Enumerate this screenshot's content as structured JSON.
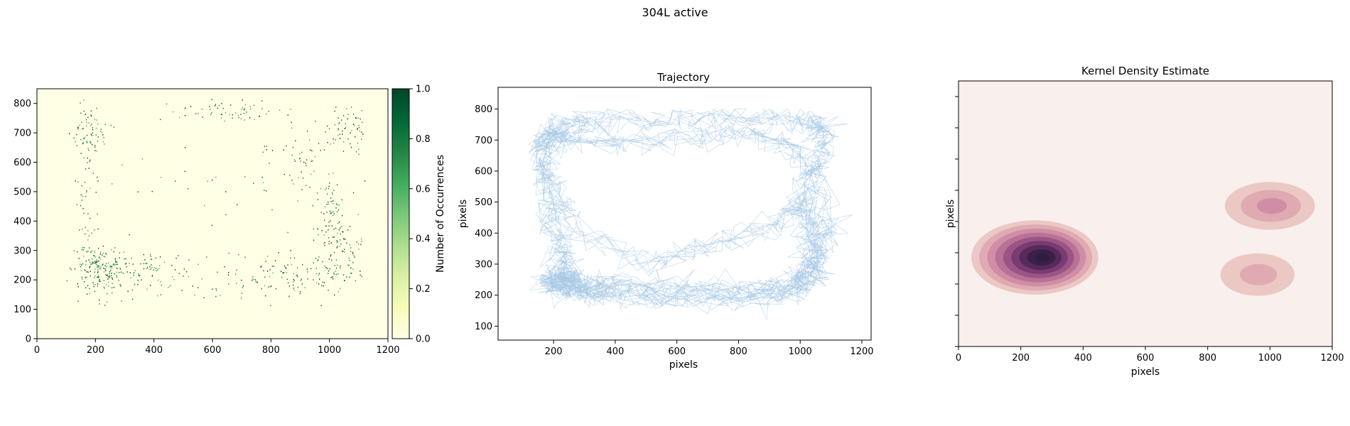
{
  "figure": {
    "suptitle": "304L active",
    "colors": {
      "heat_low": "#ffffe5",
      "heat_high": "#004529",
      "traj": "#a6c8e4",
      "kde_base": "#f9efed",
      "kde_dark": "#2d1e3e"
    }
  },
  "chart_data": [
    {
      "type": "heatmap",
      "title": "",
      "xlabel": "",
      "ylabel": "",
      "xlim": [
        0,
        1200
      ],
      "ylim": [
        0,
        850
      ],
      "xticks": [
        0,
        200,
        400,
        600,
        800,
        1000,
        1200
      ],
      "yticks": [
        0,
        100,
        200,
        300,
        400,
        500,
        600,
        700,
        800
      ],
      "colorbar": {
        "label": "Number of Occurrences",
        "ticks": [
          0.0,
          0.2,
          0.4,
          0.6,
          0.8,
          1.0
        ],
        "tick_labels": [
          "0.0",
          "0.2",
          "0.4",
          "0.6",
          "0.8",
          "1.0"
        ],
        "range": [
          0,
          1
        ]
      },
      "hot_regions": [
        {
          "x": 220,
          "y": 240,
          "sx": 45,
          "sy": 45,
          "count": 180
        },
        {
          "x": 180,
          "y": 700,
          "sx": 30,
          "sy": 50,
          "count": 70
        },
        {
          "x": 1060,
          "y": 710,
          "sx": 35,
          "sy": 40,
          "count": 60
        },
        {
          "x": 1030,
          "y": 300,
          "sx": 50,
          "sy": 90,
          "count": 130
        },
        {
          "x": 880,
          "y": 220,
          "sx": 70,
          "sy": 30,
          "count": 70
        },
        {
          "x": 370,
          "y": 230,
          "sx": 60,
          "sy": 30,
          "count": 60
        },
        {
          "x": 650,
          "y": 770,
          "sx": 90,
          "sy": 20,
          "count": 60
        },
        {
          "x": 870,
          "y": 620,
          "sx": 60,
          "sy": 60,
          "count": 50
        },
        {
          "x": 170,
          "y": 420,
          "sx": 25,
          "sy": 120,
          "count": 50
        },
        {
          "x": 1010,
          "y": 460,
          "sx": 25,
          "sy": 50,
          "count": 25
        },
        {
          "x": 600,
          "y": 200,
          "sx": 200,
          "sy": 40,
          "count": 60
        },
        {
          "x": 600,
          "y": 500,
          "sx": 300,
          "sy": 180,
          "count": 60
        }
      ]
    },
    {
      "type": "line",
      "title": "Trajectory",
      "xlabel": "pixels",
      "ylabel": "pixels",
      "xlim": [
        20,
        1230
      ],
      "ylim": [
        55,
        870
      ],
      "xticks": [
        200,
        400,
        600,
        800,
        1000,
        1200
      ],
      "yticks": [
        100,
        200,
        300,
        400,
        500,
        600,
        700,
        800
      ],
      "series": [
        {
          "x": [
            180,
            210,
            240,
            260,
            300,
            380,
            520,
            700,
            900,
            1010,
            1050,
            1040,
            1010,
            1070,
            1080,
            1050,
            900,
            700,
            500,
            300,
            200,
            170,
            190,
            210,
            230,
            250,
            240,
            400,
            650,
            850,
            1000,
            1060,
            1100,
            1040,
            950,
            800,
            600,
            400,
            250,
            200,
            160,
            180,
            260,
            500,
            700,
            900,
            1020,
            1030,
            980,
            700,
            450,
            230
          ],
          "y": [
            250,
            230,
            260,
            240,
            220,
            215,
            205,
            200,
            210,
            230,
            300,
            400,
            520,
            650,
            730,
            760,
            770,
            775,
            765,
            760,
            740,
            650,
            500,
            380,
            300,
            260,
            230,
            240,
            220,
            215,
            250,
            330,
            420,
            600,
            700,
            720,
            700,
            690,
            700,
            720,
            680,
            560,
            420,
            300,
            350,
            420,
            500,
            300,
            200,
            180,
            190,
            210
          ]
        }
      ]
    },
    {
      "type": "heatmap",
      "title": "Kernel Density Estimate",
      "xlabel": "pixels",
      "ylabel": "pixels",
      "xlim": [
        0,
        1200
      ],
      "ylim": [
        0,
        850
      ],
      "xticks": [
        0,
        200,
        400,
        600,
        800,
        1000,
        1200
      ],
      "components": [
        {
          "x": 245,
          "y": 285,
          "sx": 120,
          "sy": 70,
          "weight": 1.0
        },
        {
          "x": 1000,
          "y": 450,
          "sx": 85,
          "sy": 45,
          "weight": 0.3
        },
        {
          "x": 960,
          "y": 230,
          "sx": 70,
          "sy": 40,
          "weight": 0.2
        }
      ]
    }
  ]
}
